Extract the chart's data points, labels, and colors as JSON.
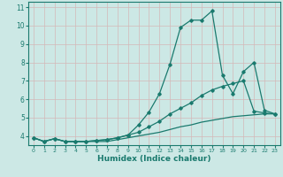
{
  "xlabel": "Humidex (Indice chaleur)",
  "x": [
    0,
    1,
    2,
    3,
    4,
    5,
    6,
    7,
    8,
    9,
    10,
    11,
    12,
    13,
    14,
    15,
    16,
    17,
    18,
    19,
    20,
    21,
    22,
    23
  ],
  "line1": [
    3.9,
    3.7,
    3.85,
    3.7,
    3.7,
    3.7,
    3.7,
    3.7,
    3.8,
    3.9,
    4.0,
    4.1,
    4.2,
    4.35,
    4.5,
    4.6,
    4.75,
    4.85,
    4.95,
    5.05,
    5.1,
    5.15,
    5.2,
    5.2
  ],
  "line2": [
    3.9,
    3.7,
    3.85,
    3.7,
    3.7,
    3.7,
    3.75,
    3.8,
    3.9,
    4.05,
    4.2,
    4.5,
    4.8,
    5.2,
    5.5,
    5.8,
    6.2,
    6.5,
    6.7,
    6.85,
    7.0,
    5.35,
    5.25,
    5.2
  ],
  "line3": [
    3.9,
    3.7,
    3.85,
    3.7,
    3.7,
    3.7,
    3.75,
    3.8,
    3.9,
    4.05,
    4.6,
    5.3,
    6.3,
    7.9,
    9.9,
    10.3,
    10.3,
    10.8,
    7.3,
    6.3,
    7.5,
    8.0,
    5.4,
    5.2
  ],
  "ylim": [
    3.5,
    11.3
  ],
  "xlim": [
    -0.5,
    23.5
  ],
  "yticks": [
    4,
    5,
    6,
    7,
    8,
    9,
    10,
    11
  ],
  "xticks": [
    0,
    1,
    2,
    3,
    4,
    5,
    6,
    7,
    8,
    9,
    10,
    11,
    12,
    13,
    14,
    15,
    16,
    17,
    18,
    19,
    20,
    21,
    22,
    23
  ],
  "line_color": "#1a7a6e",
  "bg_color": "#cce8e5",
  "grid_color": "#d4b8b8",
  "fig_bg": "#cce8e5",
  "spine_color": "#1a7a6e"
}
